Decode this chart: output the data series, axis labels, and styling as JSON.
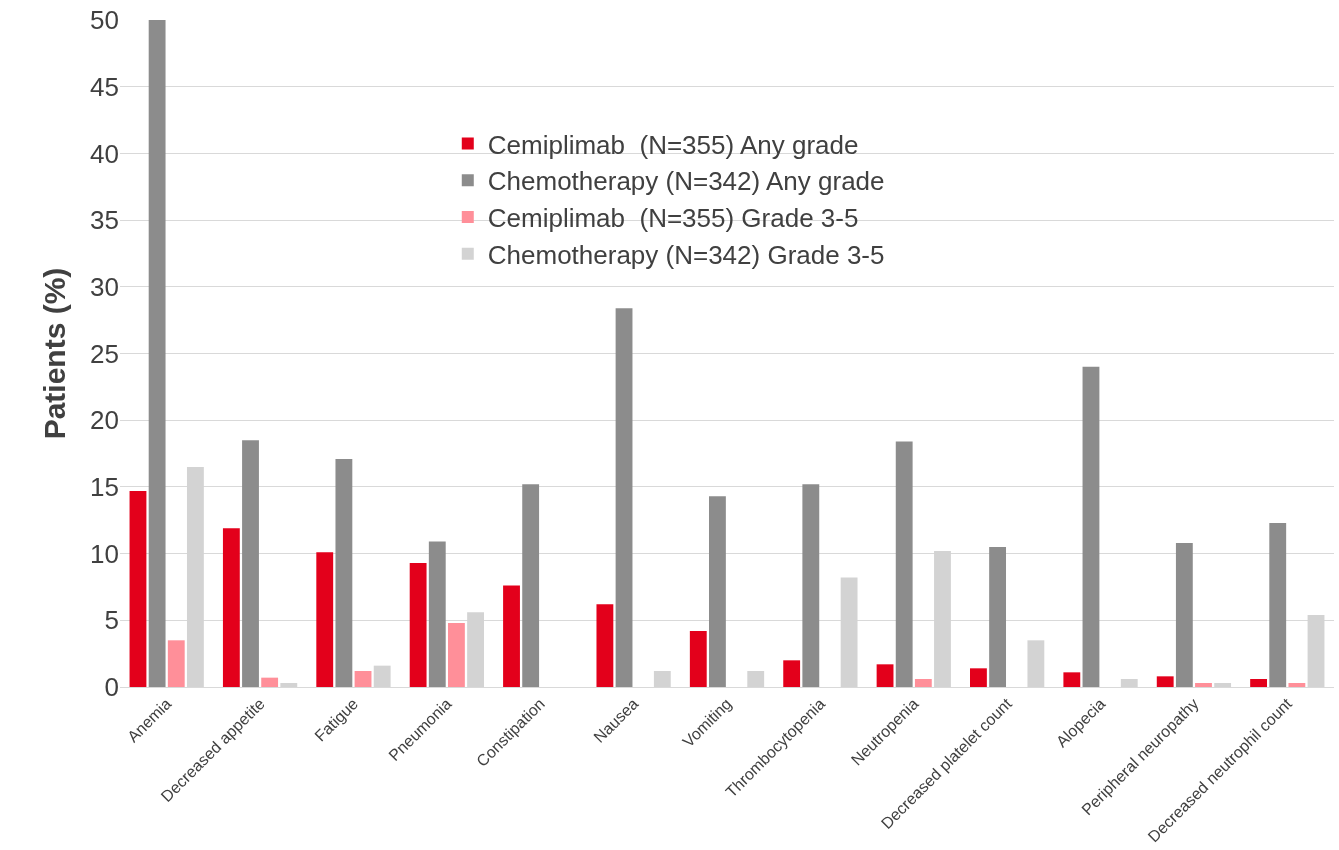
{
  "chart_data": {
    "type": "bar",
    "ylabel": "Patients (%)",
    "categories": [
      "Anemia",
      "Decreased appetite",
      "Fatigue",
      "Pneumonia",
      "Constipation",
      "Nausea",
      "Vomiting",
      "Thrombocytopenia",
      "Neutropenia",
      "Decreased platelet count",
      "Alopecia",
      "Peripheral neuropathy",
      "Decreased neutrophil count"
    ],
    "series": [
      {
        "name": "Cemiplimab  (N=355) Any grade",
        "color": "#e3001b",
        "values": [
          14.7,
          11.9,
          10.1,
          9.3,
          7.6,
          6.2,
          4.2,
          2.0,
          1.7,
          1.4,
          1.1,
          0.8,
          0.6
        ]
      },
      {
        "name": "Chemotherapy (N=342) Any grade",
        "color": "#8c8c8c",
        "values": [
          50.0,
          18.5,
          17.1,
          10.9,
          15.2,
          28.4,
          14.3,
          15.2,
          18.4,
          10.5,
          24.0,
          10.8,
          12.3
        ]
      },
      {
        "name": "Cemiplimab  (N=355) Grade 3-5",
        "color": "#ff8f99",
        "values": [
          3.5,
          0.7,
          1.2,
          4.8,
          0,
          0,
          0,
          0,
          0.6,
          0,
          0,
          0.3,
          0.3
        ]
      },
      {
        "name": "Chemotherapy (N=342) Grade 3-5",
        "color": "#d3d3d3",
        "values": [
          16.5,
          0.3,
          1.6,
          5.6,
          0,
          1.2,
          1.2,
          8.2,
          10.2,
          3.5,
          0.6,
          0.3,
          5.4
        ]
      }
    ],
    "ylim": [
      0,
      50
    ],
    "yticks": [
      0,
      5,
      10,
      15,
      20,
      25,
      30,
      35,
      40,
      45,
      50
    ],
    "grid": "y",
    "legend": "top"
  }
}
